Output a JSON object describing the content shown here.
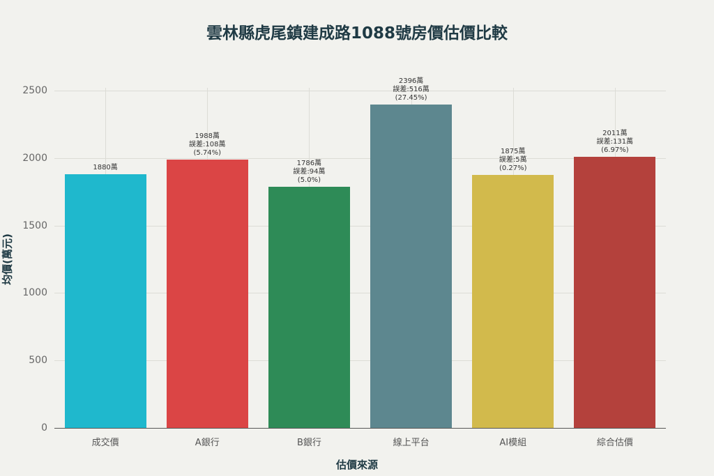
{
  "chart_data": {
    "type": "bar",
    "title": "雲林縣虎尾鎮建成路1088號房價估價比較",
    "xlabel": "估價來源",
    "ylabel": "均價(萬元)",
    "ylim": [
      0,
      2500
    ],
    "yticks": [
      0,
      500,
      1000,
      1500,
      2000,
      2500
    ],
    "grid": true,
    "categories": [
      "成交價",
      "A銀行",
      "B銀行",
      "線上平台",
      "AI模組",
      "綜合估價"
    ],
    "values": [
      1880,
      1988,
      1786,
      2396,
      1875,
      2011
    ],
    "colors": [
      "#1fb8cd",
      "#db4545",
      "#2e8b57",
      "#5d878f",
      "#d2ba4c",
      "#b4413c"
    ],
    "annotations": [
      [
        "1880萬"
      ],
      [
        "1988萬",
        "誤差:108萬",
        "(5.74%)"
      ],
      [
        "1786萬",
        "誤差:94萬",
        "(5.0%)"
      ],
      [
        "2396萬",
        "誤差:516萬",
        "(27.45%)"
      ],
      [
        "1875萬",
        "誤差:5萬",
        "(0.27%)"
      ],
      [
        "2011萬",
        "誤差:131萬",
        "(6.97%)"
      ]
    ]
  }
}
